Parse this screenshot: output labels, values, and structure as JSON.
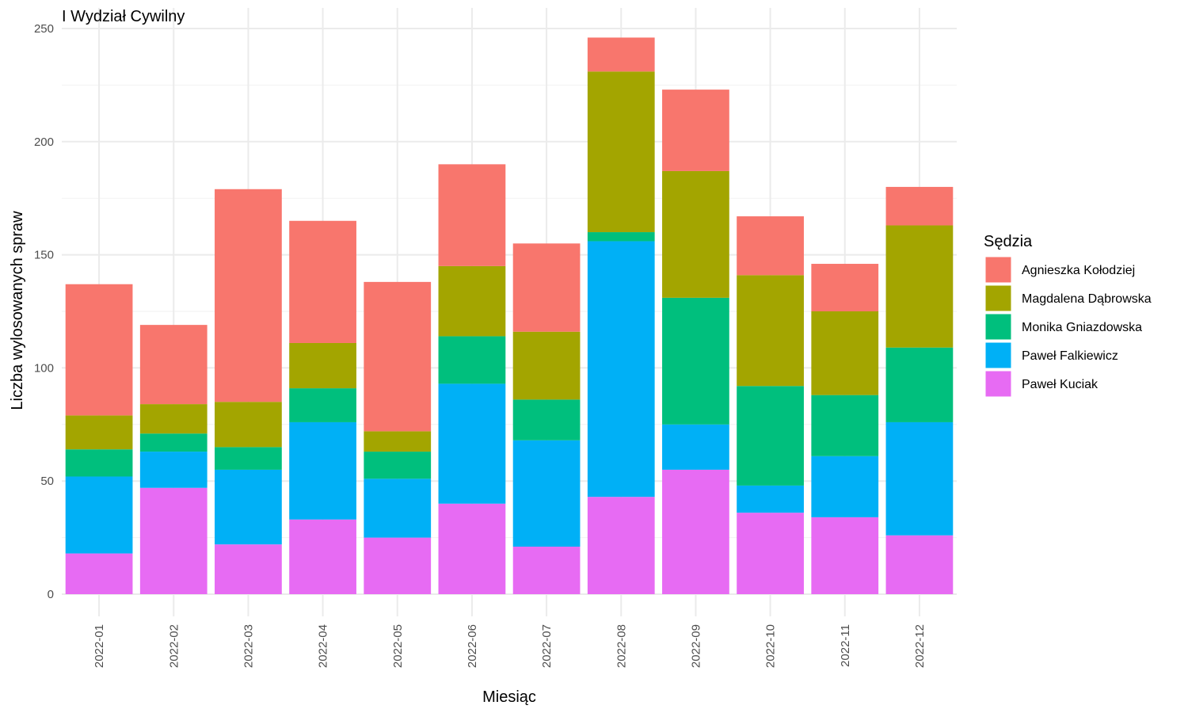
{
  "chart_data": {
    "type": "bar",
    "stacked": true,
    "title": "I Wydział Cywilny",
    "xlabel": "Miesiąc",
    "ylabel": "Liczba wylosowanych spraw",
    "ylim": [
      0,
      250
    ],
    "yticks": [
      0,
      50,
      100,
      150,
      200,
      250
    ],
    "grid": true,
    "legend_position": "right",
    "legend_title": "Sędzia",
    "categories": [
      "2022-01",
      "2022-02",
      "2022-03",
      "2022-04",
      "2022-05",
      "2022-06",
      "2022-07",
      "2022-08",
      "2022-09",
      "2022-10",
      "2022-11",
      "2022-12"
    ],
    "series": [
      {
        "name": "Agnieszka Kołodziej",
        "color": "#F8766D",
        "values": [
          58,
          35,
          94,
          54,
          66,
          45,
          39,
          15,
          36,
          26,
          21,
          17
        ]
      },
      {
        "name": "Magdalena Dąbrowska",
        "color": "#A3A500",
        "values": [
          15,
          13,
          20,
          20,
          9,
          31,
          30,
          71,
          56,
          49,
          37,
          54
        ]
      },
      {
        "name": "Monika Gniazdowska",
        "color": "#00BF7D",
        "values": [
          12,
          8,
          10,
          15,
          12,
          21,
          18,
          4,
          56,
          44,
          27,
          33
        ]
      },
      {
        "name": "Paweł Falkiewicz",
        "color": "#00B0F6",
        "values": [
          34,
          16,
          33,
          43,
          26,
          53,
          47,
          113,
          20,
          12,
          27,
          50
        ]
      },
      {
        "name": "Paweł Kuciak",
        "color": "#E76BF3",
        "values": [
          18,
          47,
          22,
          33,
          25,
          40,
          21,
          43,
          55,
          36,
          34,
          26
        ]
      }
    ]
  }
}
